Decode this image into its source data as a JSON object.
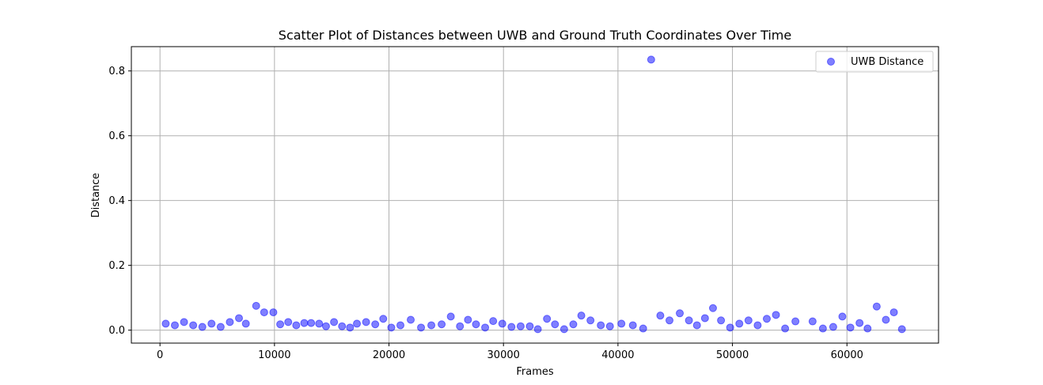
{
  "chart_data": {
    "type": "scatter",
    "title": "Scatter Plot of Distances between UWB and Ground Truth Coordinates Over Time",
    "xlabel": "Frames",
    "ylabel": "Distance",
    "xlim": [
      -2500,
      68000
    ],
    "ylim": [
      -0.04,
      0.875
    ],
    "xticks": [
      0,
      10000,
      20000,
      30000,
      40000,
      50000,
      60000
    ],
    "xtick_labels": [
      "0",
      "10000",
      "20000",
      "30000",
      "40000",
      "50000",
      "60000"
    ],
    "yticks": [
      0.0,
      0.2,
      0.4,
      0.6,
      0.8
    ],
    "ytick_labels": [
      "0.0",
      "0.2",
      "0.4",
      "0.6",
      "0.8"
    ],
    "grid": true,
    "legend_position": "top-right",
    "series": [
      {
        "name": "UWB Distance",
        "color": "#0000ff",
        "alpha": 0.5,
        "marker": "circle",
        "x": [
          500,
          1300,
          2100,
          2900,
          3700,
          4500,
          5300,
          6100,
          6900,
          7500,
          8400,
          9100,
          9900,
          10500,
          11200,
          11900,
          12600,
          13200,
          13900,
          14500,
          15200,
          15900,
          16600,
          17200,
          18000,
          18800,
          19500,
          20200,
          21000,
          21900,
          22800,
          23700,
          24600,
          25400,
          26200,
          26900,
          27600,
          28400,
          29100,
          29900,
          30700,
          31500,
          32300,
          33000,
          33800,
          34500,
          35300,
          36100,
          36800,
          37600,
          38500,
          39300,
          40300,
          41300,
          42200,
          42900,
          43700,
          44500,
          45400,
          46200,
          46900,
          47600,
          48300,
          49000,
          49800,
          50600,
          51400,
          52200,
          53000,
          53800,
          54600,
          55500,
          57000,
          57900,
          58800,
          59600,
          60300,
          61100,
          61800,
          62600,
          63400,
          64100,
          64800
        ],
        "y": [
          0.02,
          0.015,
          0.025,
          0.015,
          0.01,
          0.02,
          0.01,
          0.025,
          0.037,
          0.02,
          0.075,
          0.055,
          0.055,
          0.018,
          0.025,
          0.015,
          0.022,
          0.022,
          0.02,
          0.012,
          0.025,
          0.012,
          0.008,
          0.02,
          0.025,
          0.018,
          0.035,
          0.008,
          0.015,
          0.032,
          0.008,
          0.015,
          0.018,
          0.042,
          0.012,
          0.032,
          0.018,
          0.008,
          0.028,
          0.02,
          0.01,
          0.012,
          0.012,
          0.003,
          0.035,
          0.018,
          0.003,
          0.018,
          0.045,
          0.03,
          0.015,
          0.012,
          0.02,
          0.015,
          0.005,
          0.835,
          0.045,
          0.03,
          0.052,
          0.03,
          0.015,
          0.037,
          0.068,
          0.03,
          0.008,
          0.02,
          0.03,
          0.015,
          0.035,
          0.047,
          0.005,
          0.027,
          0.027,
          0.005,
          0.01,
          0.042,
          0.008,
          0.022,
          0.005,
          0.073,
          0.032,
          0.055,
          0.003
        ]
      }
    ]
  }
}
